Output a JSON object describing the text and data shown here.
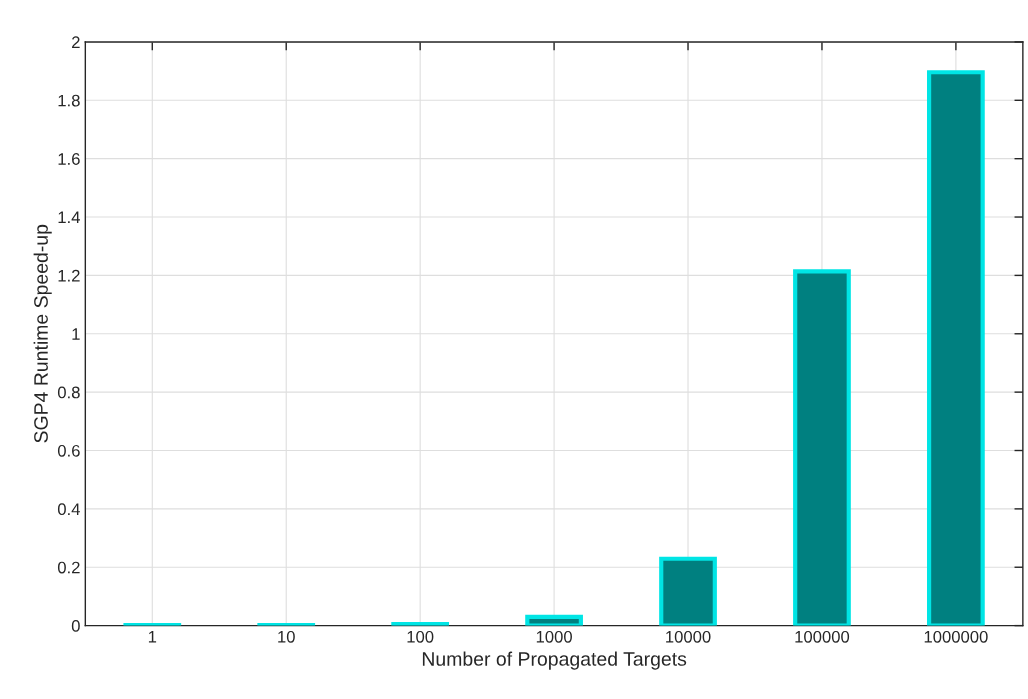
{
  "chart_data": {
    "type": "bar",
    "xlabel": "Number of Propagated Targets",
    "ylabel": "SGP4 Runtime Speed-up",
    "categories": [
      "1",
      "10",
      "100",
      "1000",
      "10000",
      "100000",
      "1000000"
    ],
    "values": [
      0.002,
      0.002,
      0.005,
      0.03,
      0.229,
      1.214,
      1.896
    ],
    "color": "#008080",
    "ylim": [
      0,
      2
    ],
    "yticks": [
      0,
      0.2,
      0.4,
      0.6,
      0.8,
      1,
      1.2,
      1.4,
      1.6,
      1.8,
      2
    ],
    "grid": true
  }
}
